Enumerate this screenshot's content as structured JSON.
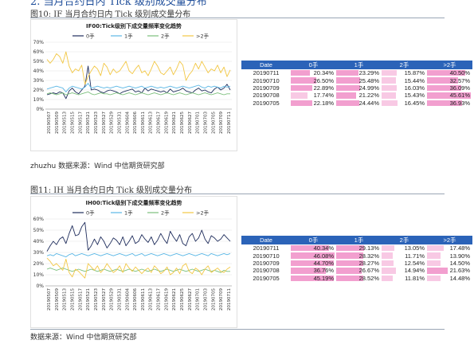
{
  "page": {
    "top_heading": "2. 当月合约日内 Tick 级别成交量分布",
    "section1": {
      "figure_title": "图10:  IF 当月合约日内 Tick  级别成交量分布",
      "footnote": "zhuzhu 数据来源：Wind     中信期货研究部"
    },
    "section2": {
      "figure_title": "图11:  IH 当月合约日内 Tick  级别成交量分布",
      "footnote": "数据来源：Wind     中信期货研究部"
    }
  },
  "tables": [
    {
      "headers": [
        "Date",
        "0手",
        "1手",
        "2手",
        ">2手"
      ],
      "rows": [
        [
          "20190711",
          "20.34%",
          "23.29%",
          "15.87%",
          "40.50%"
        ],
        [
          "20190710",
          "26.50%",
          "25.48%",
          "15.44%",
          "32.57%"
        ],
        [
          "20190709",
          "22.89%",
          "24.99%",
          "16.03%",
          "36.09%"
        ],
        [
          "20190708",
          "17.74%",
          "21.22%",
          "15.43%",
          "45.61%"
        ],
        [
          "20190705",
          "22.18%",
          "24.44%",
          "16.45%",
          "36.93%"
        ]
      ]
    },
    {
      "headers": [
        "Date",
        "0手",
        "1手",
        "2手",
        ">2手"
      ],
      "rows": [
        [
          "20190711",
          "40.34%",
          "29.13%",
          "13.05%",
          "17.48%"
        ],
        [
          "20190710",
          "46.08%",
          "28.32%",
          "11.71%",
          "13.90%"
        ],
        [
          "20190709",
          "44.70%",
          "28.27%",
          "12.54%",
          "14.50%"
        ],
        [
          "20190708",
          "36.76%",
          "26.67%",
          "14.94%",
          "21.63%"
        ],
        [
          "20190705",
          "45.19%",
          "28.52%",
          "11.81%",
          "14.48%"
        ]
      ]
    }
  ],
  "chart_data": [
    {
      "type": "line",
      "title": "IF00:Tick级别下成交量频率变化趋势",
      "ylim": [
        0,
        70
      ],
      "yticks": [
        "0%",
        "10%",
        "20%",
        "30%",
        "40%",
        "50%",
        "60%",
        "70%"
      ],
      "ytick_values": [
        0,
        10,
        20,
        30,
        40,
        50,
        60,
        70
      ],
      "legend_position": "top",
      "colors": [
        "#1f2d5c",
        "#5bb7e5",
        "#7bbf7b",
        "#f2c744"
      ],
      "x_labels": [
        "20190507",
        "20190509",
        "20190513",
        "20190515",
        "20190517",
        "20190521",
        "20190523",
        "20190527",
        "20190529",
        "20190531",
        "20190604",
        "20190606",
        "20190611",
        "20190613",
        "20190617",
        "20190619",
        "20190621",
        "20190625",
        "20190627",
        "20190701",
        "20190703",
        "20190705",
        "20190709",
        "20190711"
      ],
      "series": [
        {
          "name": "0手",
          "values": [
            15,
            16,
            17,
            16,
            18,
            17,
            11,
            19,
            22,
            18,
            16,
            20,
            24,
            45,
            20,
            21,
            20,
            18,
            17,
            19,
            20,
            19,
            18,
            16,
            18,
            19,
            20,
            21,
            18,
            19,
            17,
            22,
            19,
            21,
            20,
            19,
            18,
            19,
            17,
            21,
            18,
            19,
            20,
            22,
            19,
            18,
            17,
            20,
            22,
            19,
            20,
            18,
            17,
            21,
            23,
            20,
            22,
            26,
            20
          ]
        },
        {
          "name": "1手",
          "values": [
            21,
            22,
            23,
            24,
            23,
            22,
            18,
            22,
            24,
            23,
            22,
            21,
            23,
            27,
            22,
            23,
            24,
            23,
            22,
            23,
            22,
            23,
            24,
            23,
            22,
            23,
            24,
            23,
            22,
            23,
            24,
            22,
            23,
            24,
            23,
            22,
            23,
            22,
            23,
            24,
            23,
            22,
            23,
            24,
            23,
            22,
            23,
            24,
            25,
            23,
            22,
            24,
            23,
            24,
            23,
            22,
            24,
            23,
            24
          ]
        },
        {
          "name": "2手",
          "values": [
            16,
            17,
            16,
            15,
            16,
            17,
            15,
            16,
            17,
            16,
            15,
            16,
            17,
            18,
            16,
            15,
            16,
            17,
            16,
            16,
            15,
            16,
            17,
            16,
            15,
            16,
            17,
            16,
            15,
            16,
            17,
            16,
            15,
            16,
            17,
            16,
            15,
            16,
            17,
            16,
            15,
            16,
            17,
            16,
            15,
            16,
            17,
            16,
            15,
            16,
            17,
            16,
            15,
            16,
            17,
            16,
            15,
            16,
            16
          ]
        },
        {
          "name": ">2手",
          "values": [
            52,
            48,
            52,
            58,
            55,
            48,
            60,
            45,
            38,
            42,
            40,
            46,
            26,
            34,
            40,
            45,
            42,
            35,
            48,
            44,
            36,
            42,
            38,
            40,
            45,
            50,
            40,
            37,
            42,
            46,
            38,
            40,
            35,
            42,
            50,
            45,
            38,
            36,
            40,
            44,
            36,
            42,
            50,
            46,
            30,
            36,
            40,
            48,
            42,
            50,
            44,
            38,
            42,
            40,
            46,
            38,
            44,
            34,
            41
          ]
        }
      ]
    },
    {
      "type": "line",
      "title": "IH00:Tick级别下成交量频率变化趋势",
      "ylim": [
        0,
        60
      ],
      "yticks": [
        "0%",
        "10%",
        "20%",
        "30%",
        "40%",
        "50%",
        "60%"
      ],
      "ytick_values": [
        0,
        10,
        20,
        30,
        40,
        50,
        60
      ],
      "legend_position": "top",
      "colors": [
        "#1f2d5c",
        "#5bb7e5",
        "#7bbf7b",
        "#f2c744"
      ],
      "x_labels": [
        "20190507",
        "20190509",
        "20190513",
        "20190515",
        "20190517",
        "20190521",
        "20190523",
        "20190527",
        "20190529",
        "20190531",
        "20190604",
        "20190606",
        "20190611",
        "20190613",
        "20190617",
        "20190619",
        "20190621",
        "20190625",
        "20190627",
        "20190701",
        "20190703",
        "20190705",
        "20190709",
        "20190711"
      ],
      "series": [
        {
          "name": "0手",
          "values": [
            31,
            36,
            40,
            37,
            42,
            44,
            38,
            47,
            54,
            45,
            46,
            53,
            57,
            32,
            36,
            42,
            37,
            44,
            40,
            34,
            38,
            43,
            41,
            37,
            44,
            36,
            40,
            45,
            38,
            40,
            46,
            42,
            39,
            44,
            37,
            41,
            47,
            42,
            38,
            49,
            44,
            40,
            46,
            38,
            36,
            44,
            47,
            40,
            43,
            50,
            42,
            38,
            45,
            43,
            40,
            42,
            46,
            43,
            40
          ]
        },
        {
          "name": "1手",
          "values": [
            27,
            28,
            27,
            29,
            28,
            27,
            26,
            28,
            29,
            27,
            28,
            29,
            28,
            27,
            28,
            29,
            28,
            27,
            28,
            29,
            28,
            27,
            28,
            29,
            28,
            27,
            28,
            29,
            27,
            28,
            29,
            27,
            28,
            29,
            28,
            27,
            28,
            29,
            28,
            27,
            28,
            29,
            28,
            27,
            28,
            29,
            28,
            27,
            28,
            29,
            28,
            27,
            29,
            28,
            27,
            28,
            29,
            28,
            29
          ]
        },
        {
          "name": "2手",
          "values": [
            15,
            16,
            15,
            14,
            15,
            16,
            15,
            14,
            13,
            14,
            15,
            14,
            13,
            14,
            15,
            14,
            13,
            14,
            15,
            14,
            13,
            14,
            15,
            14,
            13,
            14,
            15,
            14,
            13,
            14,
            15,
            14,
            13,
            14,
            15,
            14,
            13,
            14,
            15,
            14,
            13,
            14,
            15,
            14,
            13,
            14,
            15,
            14,
            13,
            14,
            15,
            14,
            13,
            14,
            13,
            12,
            14,
            13,
            13
          ]
        },
        {
          "name": ">2手",
          "values": [
            25,
            22,
            18,
            20,
            17,
            14,
            24,
            12,
            8,
            15,
            13,
            10,
            7,
            20,
            17,
            14,
            18,
            12,
            15,
            20,
            16,
            12,
            14,
            18,
            12,
            20,
            16,
            13,
            17,
            14,
            11,
            14,
            16,
            12,
            18,
            15,
            11,
            13,
            17,
            10,
            12,
            16,
            11,
            18,
            20,
            13,
            11,
            16,
            14,
            10,
            15,
            18,
            12,
            14,
            16,
            13,
            12,
            15,
            17
          ]
        }
      ]
    }
  ]
}
